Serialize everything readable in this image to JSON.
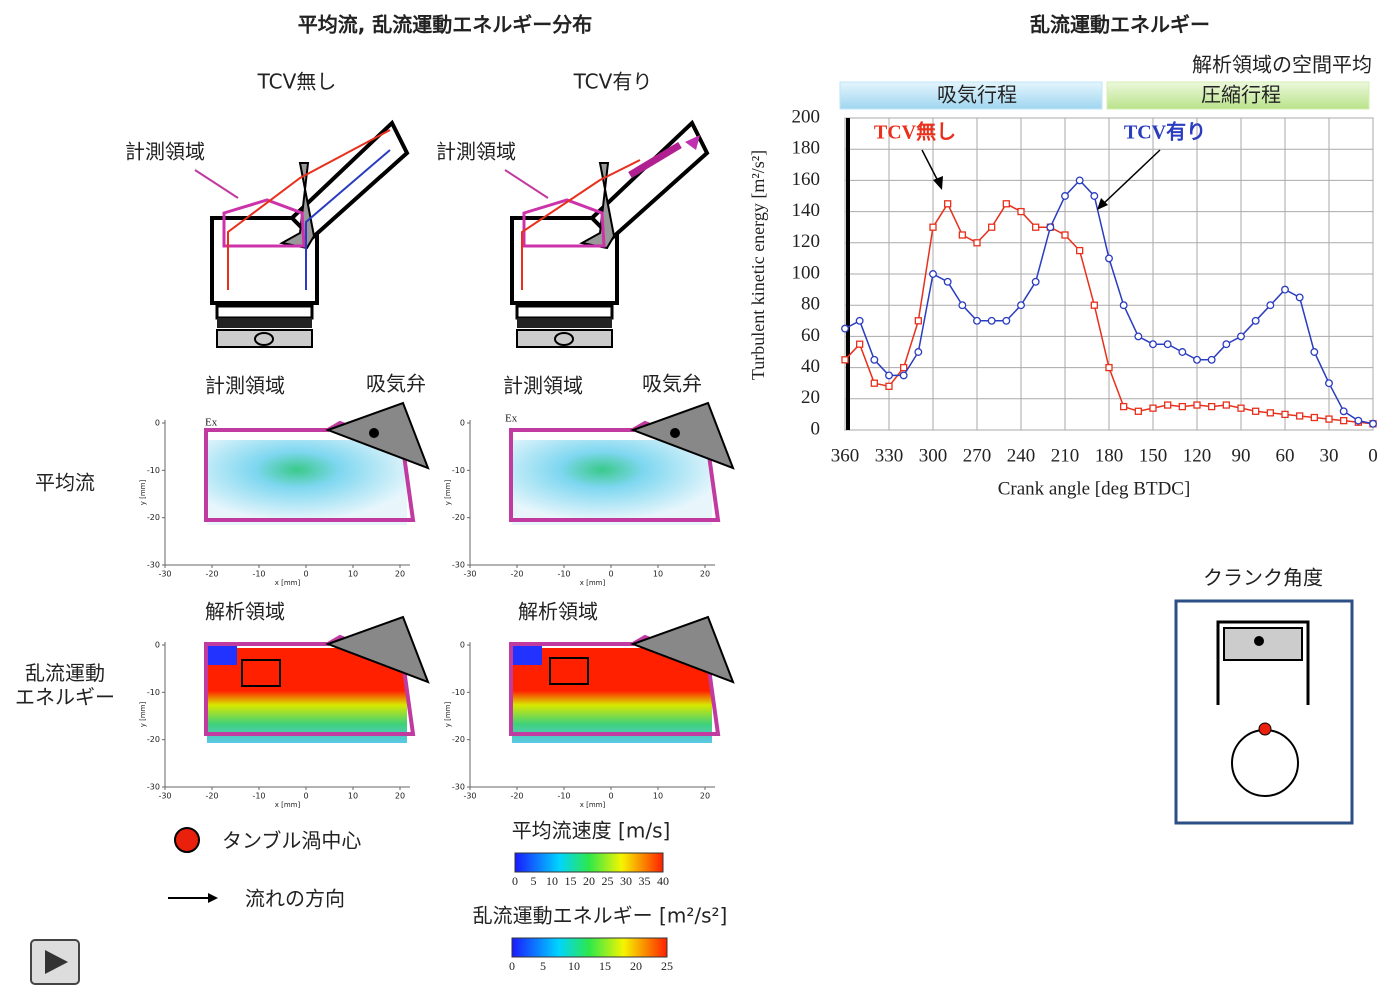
{
  "header": {
    "title": "平均流, 乱流運動エネルギー分布",
    "columns": [
      "TCV無し",
      "TCV有り"
    ]
  },
  "engine_labels": {
    "measurement_region": "計測領域",
    "intake_valve": "吸気弁",
    "analysis_region": "解析領域",
    "exhaust": "Ex"
  },
  "row_labels": {
    "mean_flow": "平均流",
    "tke": "乱流運動\nエネルギー"
  },
  "mini_axes": {
    "xticks": [
      -30,
      -20,
      -10,
      0,
      10,
      20
    ],
    "yticks": [
      0,
      -10,
      -20,
      -30
    ],
    "xlabel": "x [mm]",
    "ylabel": "y [mm]"
  },
  "legend": {
    "vortex_center": "タンブル渦中心",
    "flow_direction": "流れの方向"
  },
  "colorbars": [
    {
      "title": "平均流速度 [m/s]",
      "ticks": [
        0,
        5,
        10,
        15,
        20,
        25,
        30,
        35,
        40
      ]
    },
    {
      "title": "乱流運動エネルギー [m²/s²]",
      "ticks": [
        0,
        5,
        10,
        15,
        20,
        25
      ]
    }
  ],
  "crank_panel": {
    "title": "クランク角度"
  },
  "chart_data": {
    "type": "line",
    "title": "乱流運動エネルギー",
    "subtitle": "解析領域の空間平均",
    "phases": [
      {
        "label": "吸気行程",
        "range": [
          360,
          180
        ],
        "color": "#bfe6f7"
      },
      {
        "label": "圧縮行程",
        "range": [
          180,
          0
        ],
        "color": "#d4efb0"
      }
    ],
    "x_label": "Crank angle [deg BTDC]",
    "y_label": "Turbulent kinetic energy [m²/s²]",
    "x": [
      360,
      350,
      340,
      330,
      320,
      310,
      300,
      290,
      280,
      270,
      260,
      250,
      240,
      230,
      220,
      210,
      200,
      190,
      180,
      170,
      160,
      150,
      140,
      130,
      120,
      110,
      100,
      90,
      80,
      70,
      60,
      50,
      40,
      30,
      20,
      10,
      0
    ],
    "series": [
      {
        "name": "TCV無し",
        "color": "#e8301c",
        "values": [
          45,
          55,
          30,
          28,
          40,
          70,
          130,
          145,
          125,
          120,
          130,
          145,
          140,
          130,
          130,
          125,
          115,
          80,
          40,
          15,
          12,
          14,
          16,
          15,
          16,
          15,
          16,
          14,
          12,
          11,
          10,
          9,
          8,
          7,
          6,
          5,
          4
        ]
      },
      {
        "name": "TCV有り",
        "color": "#2a3cc0",
        "values": [
          65,
          70,
          45,
          35,
          35,
          50,
          100,
          95,
          80,
          70,
          70,
          70,
          80,
          95,
          130,
          150,
          160,
          150,
          110,
          80,
          60,
          55,
          55,
          50,
          45,
          45,
          55,
          60,
          70,
          80,
          90,
          85,
          50,
          30,
          12,
          6,
          4
        ]
      }
    ],
    "xlim": [
      360,
      0
    ],
    "ylim": [
      0,
      200
    ],
    "xticks": [
      360,
      330,
      300,
      270,
      240,
      210,
      180,
      150,
      120,
      90,
      60,
      30,
      0
    ],
    "yticks": [
      0,
      20,
      40,
      60,
      80,
      100,
      120,
      140,
      160,
      180,
      200
    ],
    "grid": true
  }
}
